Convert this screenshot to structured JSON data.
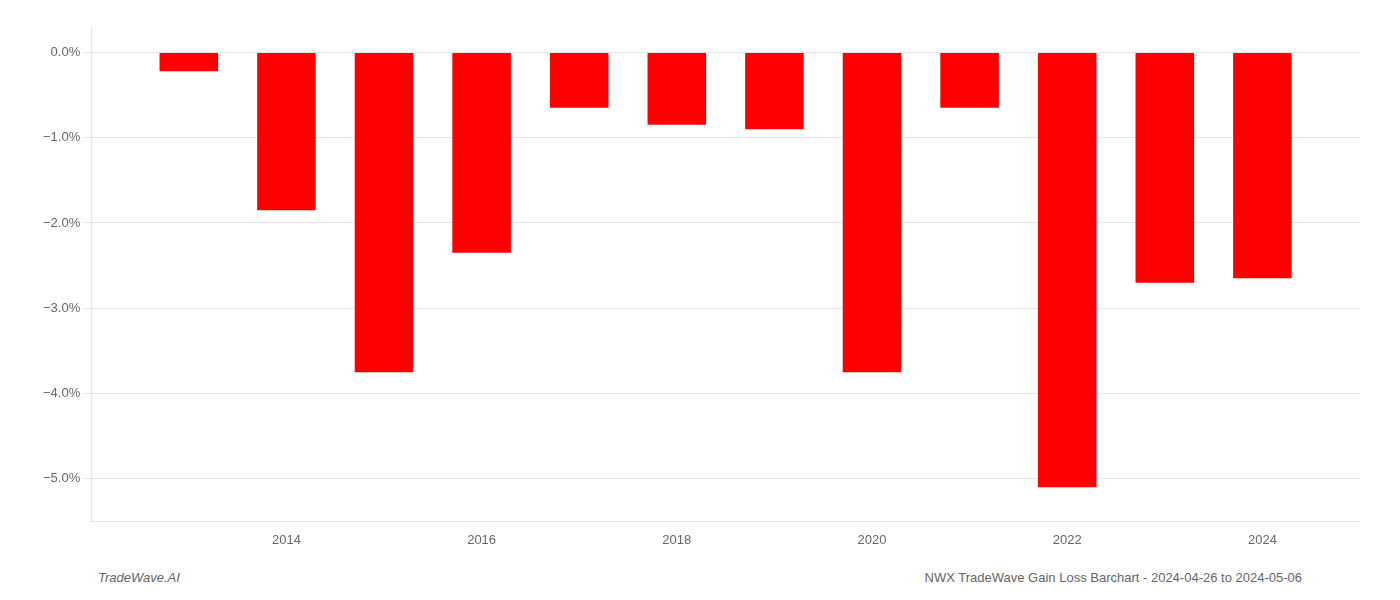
{
  "chart_data": {
    "type": "bar",
    "x": [
      2013,
      2014,
      2015,
      2016,
      2017,
      2018,
      2019,
      2020,
      2021,
      2022,
      2023,
      2024
    ],
    "values": [
      -0.22,
      -1.85,
      -3.75,
      -2.35,
      -0.65,
      -0.85,
      -0.9,
      -3.75,
      -0.65,
      -5.1,
      -2.7,
      -2.65
    ],
    "color": "#ff0000",
    "xlim": [
      2012,
      2025
    ],
    "xticks": [
      2014,
      2016,
      2018,
      2020,
      2022,
      2024
    ],
    "ylim": [
      -5.5,
      0.3
    ],
    "yticks": [
      {
        "value": 0.0,
        "label": "0.0%"
      },
      {
        "value": -1.0,
        "label": "−1.0%"
      },
      {
        "value": -2.0,
        "label": "−2.0%"
      },
      {
        "value": -3.0,
        "label": "−3.0%"
      },
      {
        "value": -4.0,
        "label": "−4.0%"
      },
      {
        "value": -5.0,
        "label": "−5.0%"
      }
    ],
    "grid": true,
    "annotations": [
      "TradeWave.AI",
      "NWX TradeWave Gain Loss Barchart - 2024-04-26 to 2024-05-06"
    ]
  }
}
